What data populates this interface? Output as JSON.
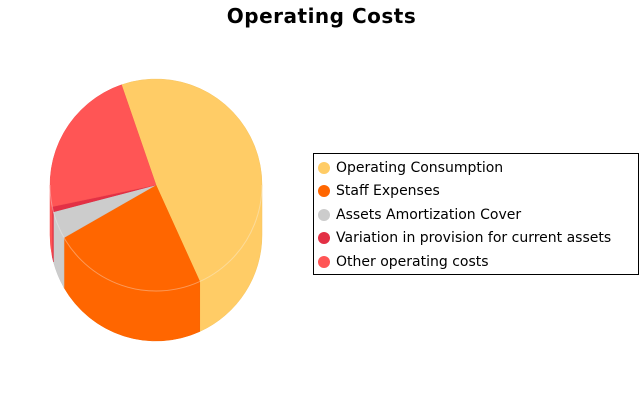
{
  "chart_data": {
    "type": "pie",
    "title": "Operating Costs",
    "style": "3d-cylinder",
    "legend_position": "right",
    "slices": [
      {
        "label": "Operating Consumption",
        "value": 48.5,
        "color": "#FFCC66"
      },
      {
        "label": "Staff Expenses",
        "value": 23.5,
        "color": "#FF6600"
      },
      {
        "label": "Assets Amortization Cover",
        "value": 4.2,
        "color": "#CCCCCC"
      },
      {
        "label": "Variation in provision for current assets",
        "value": 0.8,
        "color": "#E33045"
      },
      {
        "label": "Other operating costs",
        "value": 23.0,
        "color": "#FF5555"
      }
    ]
  }
}
